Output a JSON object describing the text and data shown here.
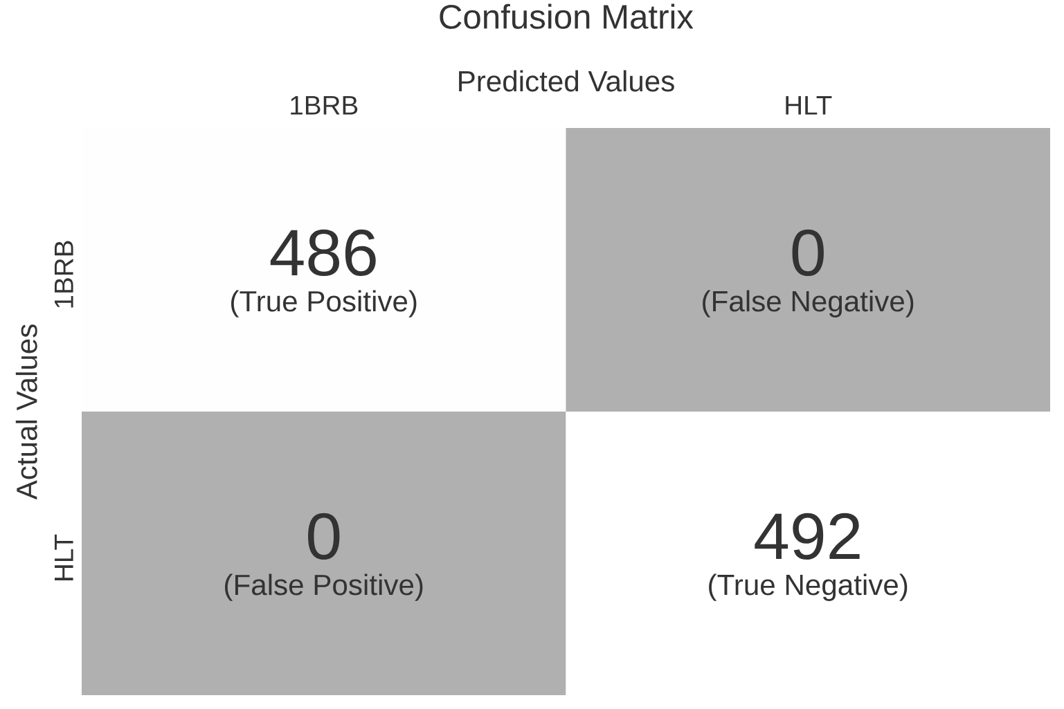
{
  "chart_data": {
    "type": "heatmap",
    "title": "Confusion Matrix",
    "xlabel": "Predicted Values",
    "ylabel": "Actual Values",
    "data_labels": true,
    "categories": [
      "1BRB",
      "HLT"
    ],
    "y_categories": [
      "1BRB",
      "HLT"
    ],
    "cells": [
      [
        486,
        0
      ],
      [
        0,
        492
      ]
    ],
    "annotations": [
      "(True Positive)",
      "(False Negative)",
      "(False Positive)",
      "(True Negative)"
    ]
  }
}
